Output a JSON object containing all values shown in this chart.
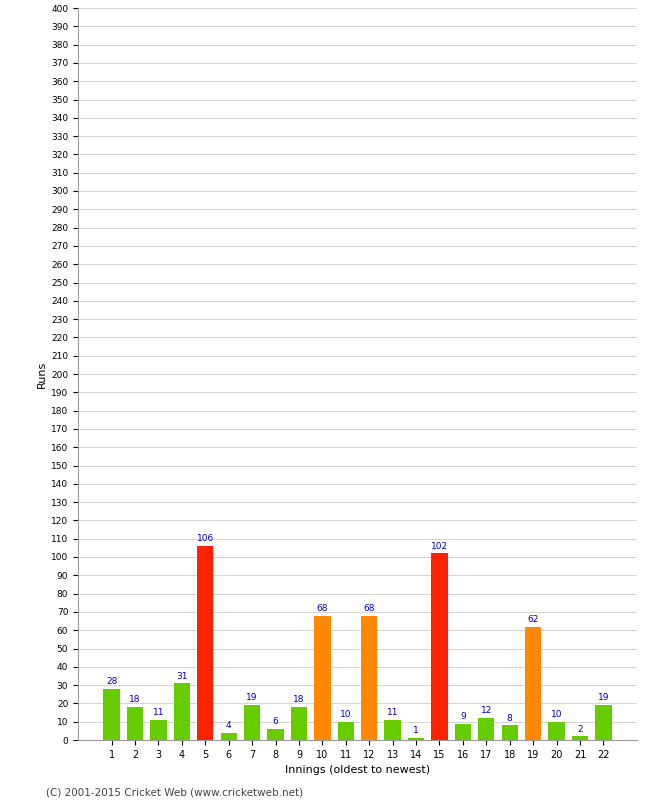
{
  "innings": [
    1,
    2,
    3,
    4,
    5,
    6,
    7,
    8,
    9,
    10,
    11,
    12,
    13,
    14,
    15,
    16,
    17,
    18,
    19,
    20,
    21,
    22
  ],
  "values": [
    28,
    18,
    11,
    31,
    106,
    4,
    19,
    6,
    18,
    68,
    10,
    68,
    11,
    1,
    102,
    9,
    12,
    8,
    62,
    10,
    2,
    19
  ],
  "colors": [
    "#66cc00",
    "#66cc00",
    "#66cc00",
    "#66cc00",
    "#ff2200",
    "#66cc00",
    "#66cc00",
    "#66cc00",
    "#66cc00",
    "#ff8800",
    "#66cc00",
    "#ff8800",
    "#66cc00",
    "#66cc00",
    "#ff2200",
    "#66cc00",
    "#66cc00",
    "#66cc00",
    "#ff8800",
    "#66cc00",
    "#66cc00",
    "#66cc00"
  ],
  "ylabel": "Runs",
  "xlabel": "Innings (oldest to newest)",
  "footer": "(C) 2001-2015 Cricket Web (www.cricketweb.net)",
  "ylim": [
    0,
    400
  ],
  "label_color": "#0000cc",
  "bg_color": "#ffffff",
  "grid_color": "#cccccc"
}
